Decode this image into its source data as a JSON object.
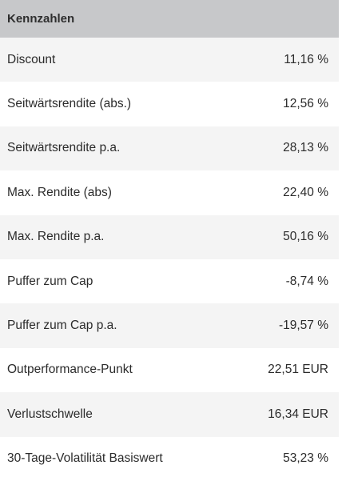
{
  "header": {
    "title": "Kennzahlen"
  },
  "rows": [
    {
      "label": "Discount",
      "value": "11,16 %"
    },
    {
      "label": "Seitwärtsrendite (abs.)",
      "value": "12,56 %"
    },
    {
      "label": "Seitwärtsrendite p.a.",
      "value": "28,13 %"
    },
    {
      "label": "Max. Rendite (abs)",
      "value": "22,40 %"
    },
    {
      "label": "Max. Rendite p.a.",
      "value": "50,16 %"
    },
    {
      "label": "Puffer zum Cap",
      "value": "-8,74 %"
    },
    {
      "label": "Puffer zum Cap p.a.",
      "value": "-19,57 %"
    },
    {
      "label": "Outperformance-Punkt",
      "value": "22,51 EUR"
    },
    {
      "label": "Verlustschwelle",
      "value": "16,34 EUR"
    },
    {
      "label": "30-Tage-Volatilität Basiswert",
      "value": "53,23 %"
    }
  ],
  "colors": {
    "header_bg": "#c7c8ca",
    "row_alt_bg": "#f4f4f4",
    "row_bg": "#ffffff",
    "text": "#2b2b2b"
  }
}
